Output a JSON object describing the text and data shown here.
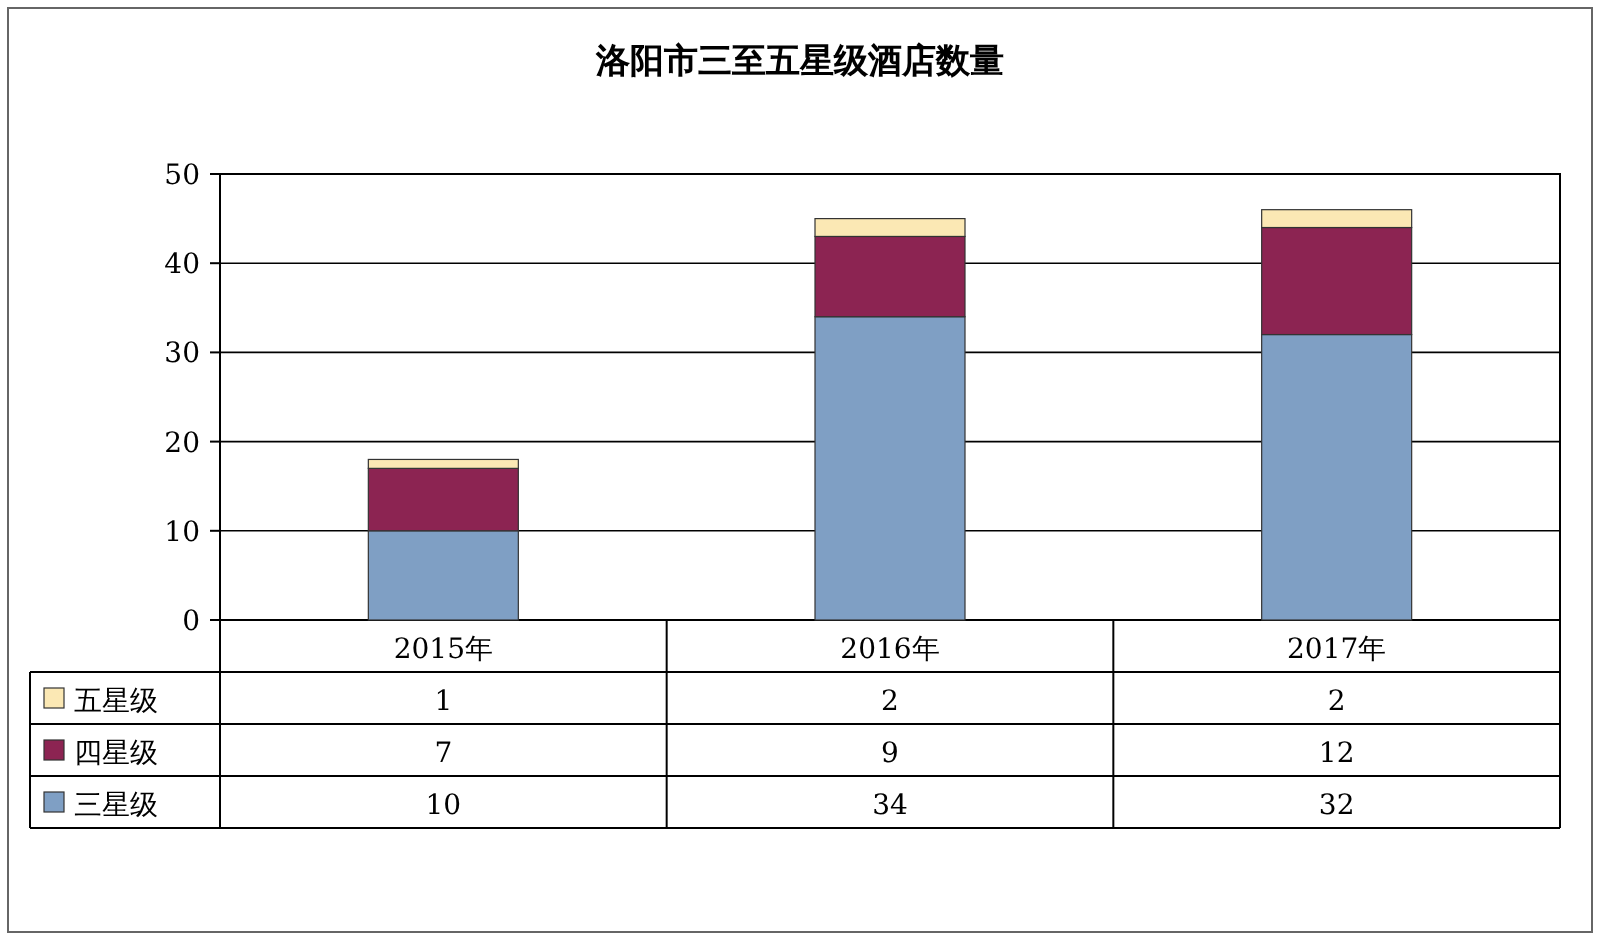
{
  "chart_data": {
    "type": "bar",
    "title": "洛阳市三至五星级酒店数量",
    "categories": [
      "2015年",
      "2016年",
      "2017年"
    ],
    "series": [
      {
        "name": "三星级",
        "color": "#7f9fc4",
        "values": [
          10,
          34,
          32
        ]
      },
      {
        "name": "四星级",
        "color": "#8c2452",
        "values": [
          7,
          9,
          12
        ]
      },
      {
        "name": "五星级",
        "color": "#fbe8b4",
        "values": [
          1,
          2,
          2
        ]
      }
    ],
    "stacked": true,
    "ylim": [
      0,
      50
    ],
    "yticks": [
      0,
      10,
      20,
      30,
      40,
      50
    ],
    "grid": "y",
    "legend": "bottom",
    "data_labels": true
  }
}
